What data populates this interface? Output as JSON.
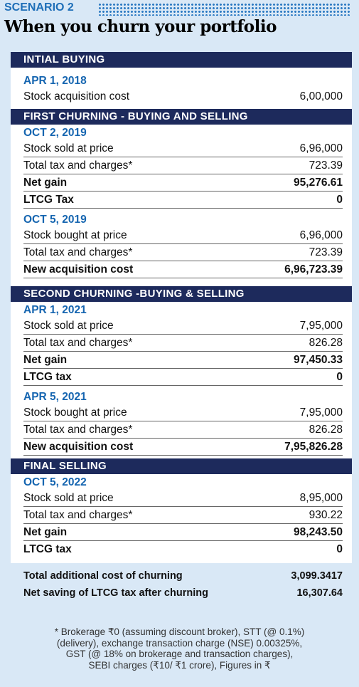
{
  "header": {
    "label": "SCENARIO 2",
    "title": "When you churn your portfolio"
  },
  "sections": [
    {
      "title": "INTIAL BUYING",
      "groups": [
        {
          "date": "APR 1, 2018",
          "rows": [
            [
              "Stock acquisition cost",
              "6,00,000"
            ]
          ]
        }
      ]
    },
    {
      "title": "FIRST CHURNING - BUYING AND SELLING",
      "groups": [
        {
          "date": "OCT 2, 2019",
          "rows": [
            [
              "Stock sold at price",
              "6,96,000"
            ],
            [
              "Total tax and charges*",
              "723.39"
            ],
            [
              "Net gain",
              "95,276.61"
            ],
            [
              "LTCG Tax",
              "0"
            ]
          ]
        },
        {
          "date": "OCT 5, 2019",
          "rows": [
            [
              "Stock bought at price",
              "6,96,000"
            ],
            [
              "Total tax and charges*",
              "723.39"
            ],
            [
              "New acquisition cost",
              "6,96,723.39"
            ]
          ]
        }
      ]
    },
    {
      "title": "SECOND CHURNING -BUYING & SELLING",
      "groups": [
        {
          "date": "APR 1, 2021",
          "rows": [
            [
              "Stock sold at price",
              "7,95,000"
            ],
            [
              "Total tax and charges*",
              "826.28"
            ],
            [
              "Net gain",
              "97,450.33"
            ],
            [
              "LTCG tax",
              "0"
            ]
          ]
        },
        {
          "date": "APR 5, 2021",
          "rows": [
            [
              "Stock bought at price",
              "7,95,000"
            ],
            [
              "Total tax and charges*",
              "826.28"
            ],
            [
              "New acquisition cost",
              "7,95,826.28"
            ]
          ]
        }
      ]
    },
    {
      "title": "FINAL SELLING",
      "groups": [
        {
          "date": "OCT 5, 2022",
          "rows": [
            [
              "Stock sold at price",
              "8,95,000"
            ],
            [
              "Total tax and charges*",
              "930.22"
            ],
            [
              "Net gain",
              "98,243.50"
            ],
            [
              "LTCG tax",
              "0"
            ]
          ]
        }
      ]
    }
  ],
  "totals": [
    [
      "Total additional cost of churning",
      "3,099.3417"
    ],
    [
      "Net saving of LTCG tax after churning",
      "16,307.64"
    ]
  ],
  "footnote": [
    "* Brokerage ₹0 (assuming discount broker), STT (@ 0.1%)",
    "(delivery), exchange transaction charge (NSE) 0.00325%,",
    "GST (@ 18% on brokerage and transaction charges),",
    "SEBI charges (₹10/ ₹1 crore), Figures in ₹"
  ]
}
